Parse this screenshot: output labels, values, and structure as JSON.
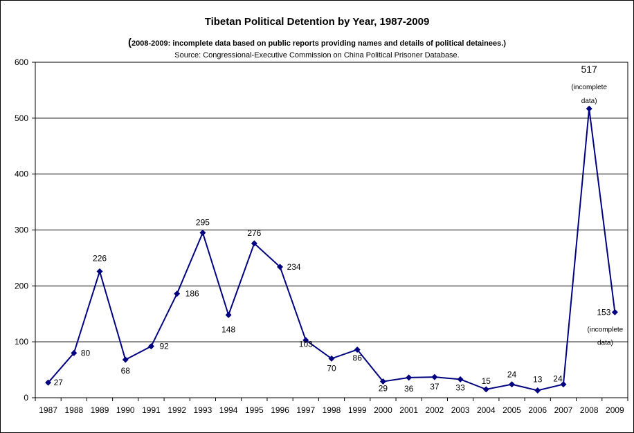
{
  "chart_data": {
    "type": "line",
    "title": "Tibetan Political Detention by Year, 1987-2009",
    "subtitle": "2008-2009: incomplete data based on public reports providing names and details of political detainees.",
    "source": "Source: Congressional-Executive Commission on China Political Prisoner Database.",
    "xlabel": "",
    "ylabel": "",
    "ylim": [
      0,
      600
    ],
    "yticks": [
      "0",
      "100",
      "200",
      "300",
      "400",
      "500",
      "600"
    ],
    "grid": true,
    "legend": "none",
    "line_color": "#000080",
    "categories": [
      "1987",
      "1988",
      "1989",
      "1990",
      "1991",
      "1992",
      "1993",
      "1994",
      "1995",
      "1996",
      "1997",
      "1998",
      "1999",
      "2000",
      "2001",
      "2002",
      "2003",
      "2004",
      "2005",
      "2006",
      "2007",
      "2008",
      "2009"
    ],
    "series": [
      {
        "values": [
          27,
          80,
          226,
          68,
          92,
          186,
          295,
          148,
          276,
          234,
          103,
          70,
          86,
          29,
          36,
          37,
          33,
          15,
          24,
          13,
          24,
          517,
          153
        ],
        "labels": [
          "27",
          "80",
          "226",
          "68",
          "92",
          "186",
          "295",
          "148",
          "276",
          "234",
          "103",
          "70",
          "86",
          "29",
          "36",
          "37",
          "33",
          "15",
          "24",
          "13",
          "24",
          "517",
          "153"
        ]
      }
    ],
    "annotations": [
      {
        "category": "2008",
        "lines": [
          "(incomplete",
          "data)"
        ]
      },
      {
        "category": "2009",
        "lines": [
          "(incomplete",
          "data)"
        ]
      }
    ]
  }
}
